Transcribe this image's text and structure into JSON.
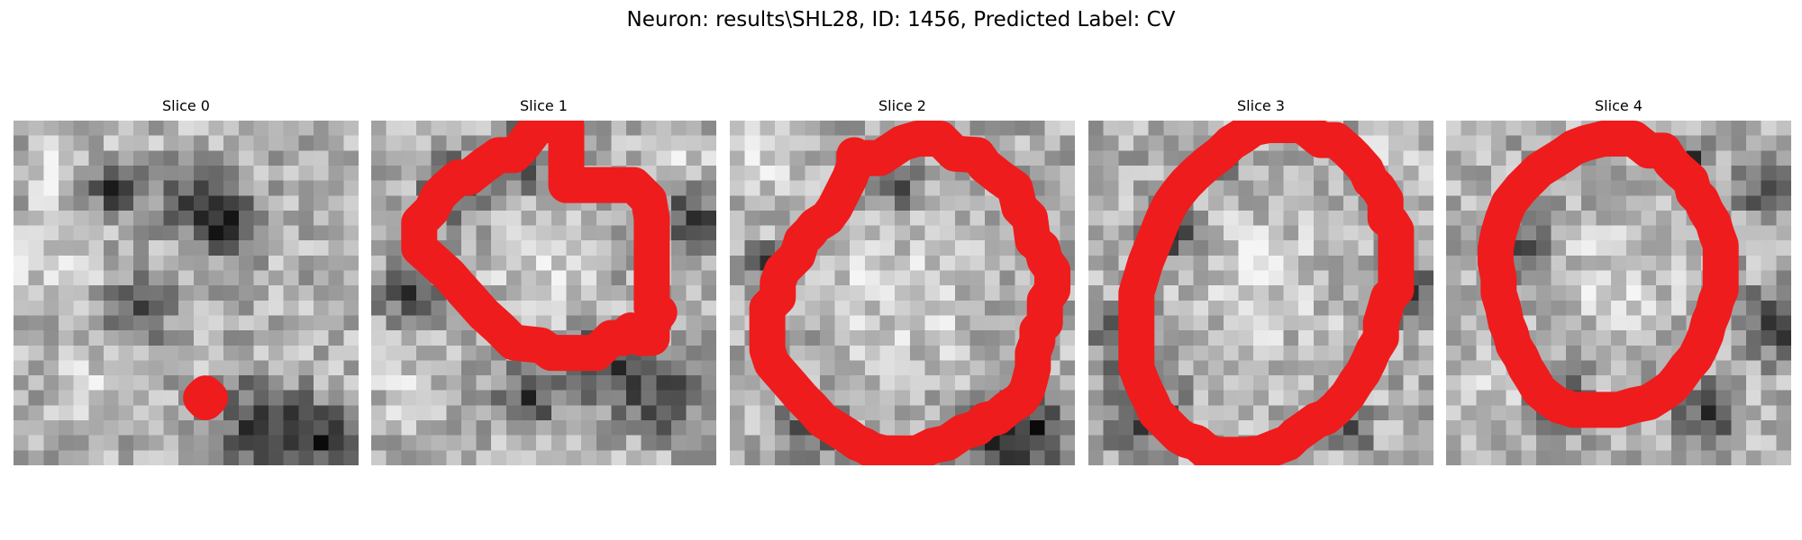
{
  "figure": {
    "title": "Neuron: results\\SHL28, ID: 1456, Predicted Label: CV",
    "contour_color": "#ee1c1c",
    "slices": [
      {
        "title": "Slice 0",
        "contour": [
          [
            12.8,
            18.2
          ],
          [
            13.1,
            18.5
          ],
          [
            12.8,
            18.8
          ],
          [
            12.5,
            18.5
          ]
        ]
      },
      {
        "title": "Slice 1",
        "contour": [
          [
            13.0,
            4.3
          ],
          [
            17.5,
            4.3
          ],
          [
            18.5,
            5.3
          ],
          [
            18.7,
            6.5
          ],
          [
            18.7,
            12.5
          ],
          [
            19.2,
            12.8
          ],
          [
            18.7,
            13.5
          ],
          [
            18.7,
            14.5
          ],
          [
            17.9,
            14.5
          ],
          [
            17.3,
            14.0
          ],
          [
            16.8,
            14.5
          ],
          [
            16.0,
            14.5
          ],
          [
            15.5,
            15.0
          ],
          [
            15.0,
            15.5
          ],
          [
            14.5,
            15.5
          ],
          [
            12.0,
            15.5
          ],
          [
            11.3,
            15.0
          ],
          [
            9.5,
            14.8
          ],
          [
            8.5,
            13.8
          ],
          [
            7.5,
            12.9
          ],
          [
            6.7,
            12.0
          ],
          [
            5.8,
            11.0
          ],
          [
            5.2,
            10.3
          ],
          [
            3.2,
            8.5
          ],
          [
            3.2,
            6.8
          ],
          [
            3.7,
            6.3
          ],
          [
            4.0,
            6.0
          ],
          [
            4.5,
            5.0
          ],
          [
            5.0,
            4.5
          ],
          [
            5.8,
            3.8
          ],
          [
            6.5,
            3.8
          ],
          [
            7.5,
            3.0
          ],
          [
            8.5,
            2.3
          ],
          [
            9.5,
            2.3
          ],
          [
            10.0,
            1.8
          ],
          [
            11.0,
            0.5
          ],
          [
            11.5,
            0.3
          ],
          [
            12.3,
            0.3
          ],
          [
            13.0,
            0.3
          ]
        ]
      },
      {
        "title": "Slice 2",
        "contour": [
          [
            8.3,
            2.3
          ],
          [
            8.5,
            2.5
          ],
          [
            9.2,
            2.5
          ],
          [
            10.0,
            2.5
          ],
          [
            11.5,
            1.5
          ],
          [
            12.5,
            1.2
          ],
          [
            14.0,
            1.2
          ],
          [
            15.0,
            2.2
          ],
          [
            16.5,
            2.3
          ],
          [
            17.0,
            3.0
          ],
          [
            18.0,
            3.8
          ],
          [
            19.0,
            4.5
          ],
          [
            19.3,
            5.8
          ],
          [
            20.0,
            6.5
          ],
          [
            20.2,
            8.0
          ],
          [
            20.8,
            8.5
          ],
          [
            21.0,
            9.3
          ],
          [
            21.5,
            10.0
          ],
          [
            21.5,
            11.3
          ],
          [
            21.0,
            12.0
          ],
          [
            21.0,
            13.5
          ],
          [
            20.5,
            14.0
          ],
          [
            20.5,
            14.7
          ],
          [
            20.2,
            15.5
          ],
          [
            20.2,
            16.5
          ],
          [
            20.0,
            17.3
          ],
          [
            19.8,
            18.0
          ],
          [
            19.4,
            18.6
          ],
          [
            18.5,
            19.2
          ],
          [
            17.8,
            19.8
          ],
          [
            17.0,
            20.0
          ],
          [
            16.5,
            20.5
          ],
          [
            15.5,
            20.8
          ],
          [
            14.5,
            21.5
          ],
          [
            13.5,
            21.7
          ],
          [
            12.5,
            22.2
          ],
          [
            11.0,
            22.2
          ],
          [
            10.3,
            22.2
          ],
          [
            9.5,
            22.0
          ],
          [
            9.0,
            21.7
          ],
          [
            8.5,
            21.5
          ],
          [
            7.8,
            21.0
          ],
          [
            7.0,
            20.5
          ],
          [
            6.2,
            20.0
          ],
          [
            5.5,
            19.2
          ],
          [
            4.8,
            18.5
          ],
          [
            4.2,
            17.8
          ],
          [
            3.5,
            17.0
          ],
          [
            2.8,
            16.2
          ],
          [
            2.5,
            15.3
          ],
          [
            2.5,
            14.0
          ],
          [
            2.5,
            12.5
          ],
          [
            3.2,
            11.8
          ],
          [
            3.2,
            10.8
          ],
          [
            3.5,
            10.0
          ],
          [
            4.0,
            9.5
          ],
          [
            4.5,
            9.0
          ],
          [
            4.8,
            8.0
          ],
          [
            5.3,
            7.5
          ],
          [
            5.7,
            7.0
          ],
          [
            6.5,
            6.5
          ],
          [
            7.0,
            5.8
          ],
          [
            7.5,
            4.8
          ],
          [
            8.0,
            3.8
          ],
          [
            8.3,
            3.0
          ],
          [
            8.3,
            2.3
          ]
        ]
      },
      {
        "title": "Slice 3",
        "contour": [
          [
            12.0,
            0.3
          ],
          [
            14.0,
            0.3
          ],
          [
            14.5,
            0.5
          ],
          [
            15.5,
            1.3
          ],
          [
            16.5,
            1.3
          ],
          [
            17.3,
            2.0
          ],
          [
            17.8,
            2.5
          ],
          [
            18.5,
            3.3
          ],
          [
            18.8,
            4.0
          ],
          [
            19.3,
            4.5
          ],
          [
            19.8,
            5.3
          ],
          [
            19.8,
            6.5
          ],
          [
            20.2,
            6.8
          ],
          [
            20.5,
            7.3
          ],
          [
            20.5,
            8.5
          ],
          [
            20.5,
            9.5
          ],
          [
            20.5,
            10.5
          ],
          [
            20.5,
            11.3
          ],
          [
            20.0,
            11.8
          ],
          [
            19.8,
            12.5
          ],
          [
            19.5,
            13.5
          ],
          [
            19.5,
            14.5
          ],
          [
            19.0,
            15.3
          ],
          [
            18.7,
            16.0
          ],
          [
            18.3,
            16.8
          ],
          [
            17.8,
            17.5
          ],
          [
            17.3,
            18.3
          ],
          [
            16.5,
            19.2
          ],
          [
            15.8,
            19.8
          ],
          [
            15.2,
            20.0
          ],
          [
            14.5,
            20.5
          ],
          [
            13.8,
            21.0
          ],
          [
            13.3,
            21.5
          ],
          [
            12.5,
            21.8
          ],
          [
            11.5,
            22.2
          ],
          [
            10.5,
            22.3
          ],
          [
            9.5,
            22.3
          ],
          [
            8.5,
            22.3
          ],
          [
            7.8,
            22.0
          ],
          [
            7.2,
            21.5
          ],
          [
            6.5,
            21.3
          ],
          [
            6.0,
            21.0
          ],
          [
            5.5,
            20.5
          ],
          [
            5.0,
            20.0
          ],
          [
            4.5,
            19.5
          ],
          [
            4.2,
            18.8
          ],
          [
            3.8,
            18.0
          ],
          [
            3.5,
            17.3
          ],
          [
            3.2,
            16.5
          ],
          [
            3.2,
            15.5
          ],
          [
            3.2,
            14.5
          ],
          [
            3.2,
            13.5
          ],
          [
            3.2,
            12.5
          ],
          [
            3.2,
            11.5
          ],
          [
            3.5,
            10.5
          ],
          [
            3.8,
            9.5
          ],
          [
            4.2,
            8.5
          ],
          [
            4.6,
            7.5
          ],
          [
            5.0,
            6.5
          ],
          [
            5.5,
            5.5
          ],
          [
            6.0,
            4.8
          ],
          [
            6.5,
            4.2
          ],
          [
            7.2,
            3.5
          ],
          [
            8.0,
            2.8
          ],
          [
            8.8,
            2.2
          ],
          [
            9.5,
            1.5
          ],
          [
            10.3,
            1.0
          ],
          [
            11.0,
            0.5
          ],
          [
            12.0,
            0.3
          ]
        ]
      },
      {
        "title": "Slice 4",
        "contour": [
          [
            10.5,
            1.2
          ],
          [
            12.5,
            1.2
          ],
          [
            13.5,
            2.0
          ],
          [
            14.5,
            2.0
          ],
          [
            15.0,
            2.8
          ],
          [
            15.5,
            3.3
          ],
          [
            16.3,
            4.0
          ],
          [
            16.5,
            4.8
          ],
          [
            17.0,
            5.3
          ],
          [
            17.3,
            6.0
          ],
          [
            17.8,
            6.8
          ],
          [
            18.0,
            7.5
          ],
          [
            18.3,
            8.3
          ],
          [
            18.3,
            9.0
          ],
          [
            18.3,
            10.0
          ],
          [
            18.3,
            11.3
          ],
          [
            18.0,
            12.0
          ],
          [
            17.8,
            12.8
          ],
          [
            17.5,
            13.5
          ],
          [
            17.3,
            14.3
          ],
          [
            17.0,
            15.0
          ],
          [
            16.6,
            15.8
          ],
          [
            16.0,
            16.5
          ],
          [
            15.5,
            17.2
          ],
          [
            15.0,
            17.8
          ],
          [
            14.3,
            18.3
          ],
          [
            13.5,
            18.8
          ],
          [
            12.5,
            19.0
          ],
          [
            11.5,
            19.3
          ],
          [
            10.5,
            19.3
          ],
          [
            9.5,
            19.3
          ],
          [
            8.5,
            19.3
          ],
          [
            7.5,
            19.0
          ],
          [
            6.8,
            18.5
          ],
          [
            6.2,
            18.0
          ],
          [
            5.8,
            17.3
          ],
          [
            5.3,
            16.5
          ],
          [
            5.0,
            15.8
          ],
          [
            4.5,
            15.0
          ],
          [
            4.3,
            14.2
          ],
          [
            4.0,
            13.5
          ],
          [
            3.8,
            12.5
          ],
          [
            3.5,
            11.5
          ],
          [
            3.5,
            10.5
          ],
          [
            3.3,
            9.5
          ],
          [
            3.3,
            8.5
          ],
          [
            3.5,
            7.5
          ],
          [
            3.8,
            6.5
          ],
          [
            4.2,
            5.5
          ],
          [
            5.0,
            4.5
          ],
          [
            5.5,
            4.0
          ],
          [
            6.2,
            3.3
          ],
          [
            7.0,
            2.8
          ],
          [
            7.8,
            2.3
          ],
          [
            8.5,
            1.8
          ],
          [
            9.3,
            1.5
          ],
          [
            10.5,
            1.2
          ]
        ]
      }
    ]
  }
}
